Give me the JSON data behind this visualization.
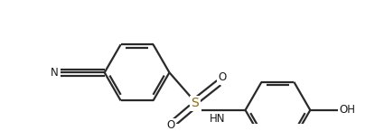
{
  "bg_color": "#ffffff",
  "line_color": "#2a2a2a",
  "text_color": "#1a1a1a",
  "s_color": "#8B6914",
  "label_CN": "N",
  "label_S": "S",
  "label_O1": "O",
  "label_O2": "O",
  "label_HN": "HN",
  "label_OH": "OH",
  "line_width": 1.6,
  "font_size": 8.5
}
